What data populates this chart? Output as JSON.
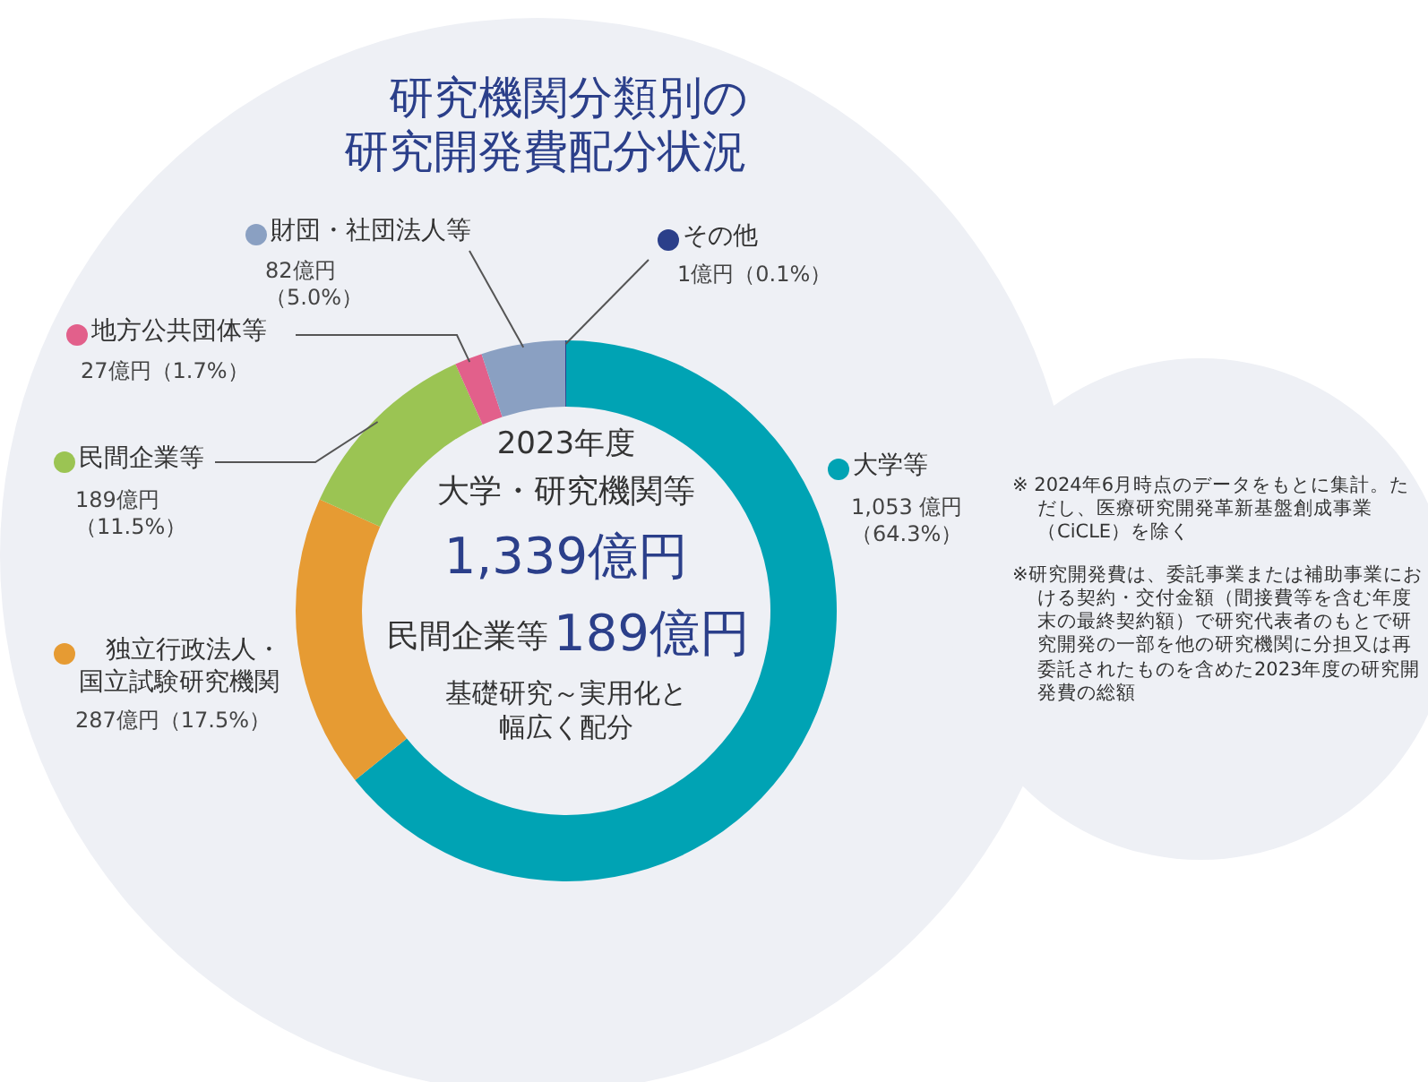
{
  "chart_data": {
    "type": "donut",
    "title": "研究機関分類別の研究開発費配分状況",
    "categories": [
      "大学等",
      "独立行政法人・国立試験研究機関",
      "民間企業等",
      "地方公共団体等",
      "財団・社団法人等",
      "その他"
    ],
    "values": [
      1053,
      287,
      189,
      27,
      82,
      1
    ],
    "value_labels": [
      "1,053 億円（64.3%）",
      "287億円（17.5%）",
      "189億円（11.5%）",
      "27億円（1.7%）",
      "82億円（5.0%）",
      "1億円（0.1%）"
    ],
    "colors": [
      "#00a3b4",
      "#e69b33",
      "#9bc453",
      "#e2608b",
      "#8aa0c2",
      "#2b3f8a"
    ],
    "legend": "left",
    "annotations": [
      "2023年度",
      "大学・研究機関等",
      "1,339億円",
      "民間企業等",
      "189億円",
      "基礎研究～実用化と幅広く配分",
      "※ 2024年6月時点のデータをもとに集計。ただし、医療研究開発革新基盤創成事業（CiCLE）を除く",
      "※研究開発費は、委託事業または補助事業における契約・交付金額（間接費等を含む年度末の最終契約額）で研究代表者のもとで研究開発の一部を他の研究機関に分担又は再委託されたものを含めた2023年度の研究開発費の総額"
    ]
  }
}
